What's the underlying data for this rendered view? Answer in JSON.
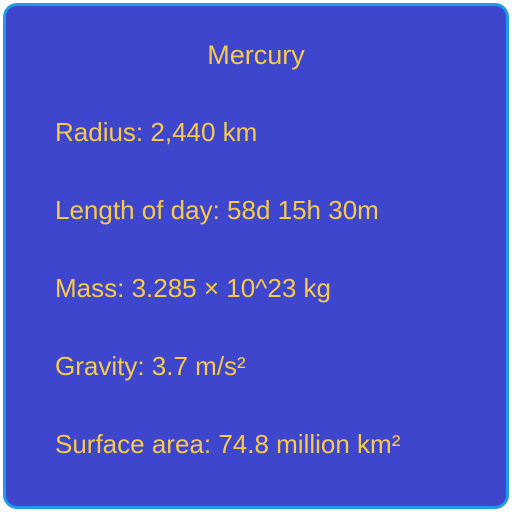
{
  "card": {
    "title": "Mercury",
    "facts": [
      {
        "text": "Radius: 2,440 km"
      },
      {
        "text": "Length of day: 58d 15h 30m"
      },
      {
        "text": "Mass: 3.285 × 10^23 kg"
      },
      {
        "text": "Gravity: 3.7 m/s²"
      },
      {
        "text": "Surface area: 74.8 million km²"
      }
    ]
  },
  "colors": {
    "background": "#3d46cc",
    "border": "#1e9ae8",
    "text": "#f8c94a"
  }
}
